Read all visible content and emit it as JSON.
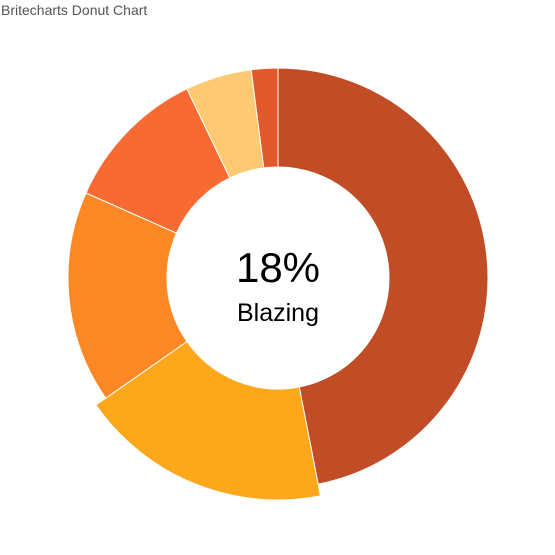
{
  "header": {
    "title": "Britecharts Donut Chart"
  },
  "chart_data": {
    "type": "pie",
    "variant": "donut",
    "title": "Britecharts Donut Chart",
    "highlighted": {
      "index": 1,
      "value_text": "18%",
      "label_text": "Blazing"
    },
    "slices": [
      {
        "value": 46,
        "color": "#c04d26"
      },
      {
        "value": 18,
        "color": "#fda71b"
      },
      {
        "value": 16,
        "color": "#fb8825"
      },
      {
        "value": 11,
        "color": "#f76b33"
      },
      {
        "value": 5,
        "color": "#fdc973"
      },
      {
        "value": 2,
        "color": "#e25a2b"
      }
    ]
  }
}
